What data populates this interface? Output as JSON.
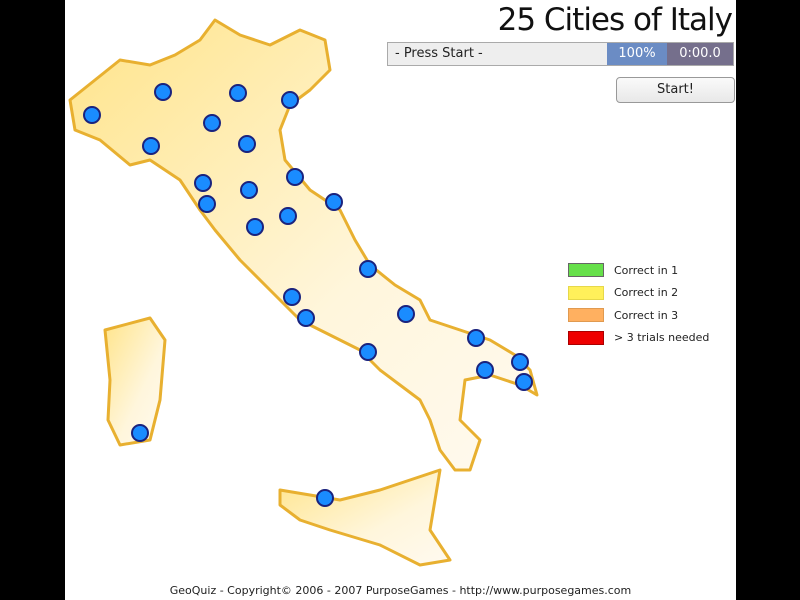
{
  "title": "25 Cities of Italy",
  "status": {
    "message": "- Press Start -",
    "percent": "100%",
    "timer": "0:00.0"
  },
  "start_button": "Start!",
  "legend": [
    {
      "label": "Correct in 1",
      "color": "#66e04a"
    },
    {
      "label": "Correct in 2",
      "color": "#fff05a"
    },
    {
      "label": "Correct in 3",
      "color": "#ffb060"
    },
    {
      "label": "> 3 trials needed",
      "color": "#ee0000"
    }
  ],
  "map": {
    "land_color": "#fff0c0",
    "border_color": "#e8b030",
    "city_color": "#1a8cff",
    "city_border": "#1a237e",
    "city_count": 25
  },
  "footer": "GeoQuiz - Copyright© 2006 - 2007 PurposeGames - http://www.purposegames.com"
}
